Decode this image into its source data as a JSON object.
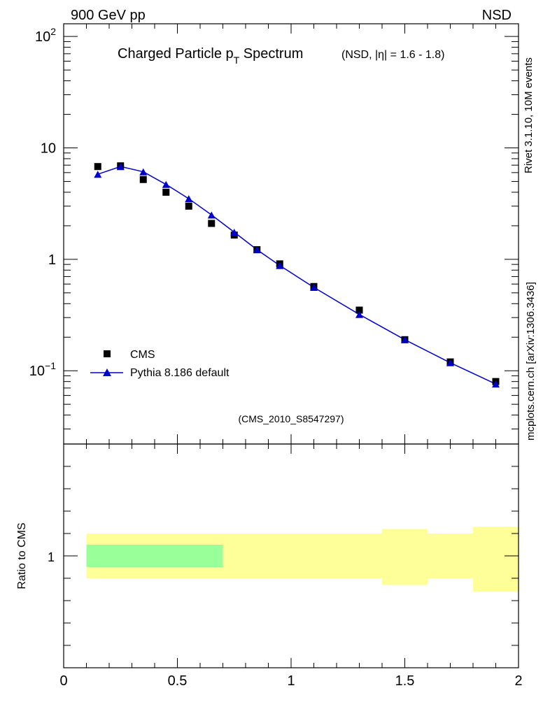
{
  "header": {
    "left": "900 GeV pp",
    "right": "NSD"
  },
  "side_labels": {
    "rivet": "Rivet 3.1.10,  10M events",
    "mcplots": "mcplots.cern.ch [arXiv:1306.3436]"
  },
  "chart_data": {
    "type": "scatter",
    "title_main": "Charged Particle p",
    "title_sub": "T",
    "title_main2": " Spectrum",
    "title_note": "(NSD, |η| = 1.6 - 1.8)",
    "watermark": "(CMS_2010_S8547297)",
    "xlabel": "",
    "ylabel": "",
    "xlim": [
      0,
      2
    ],
    "ylim": [
      0.022,
      130
    ],
    "yscale": "log",
    "y_ticks": [
      {
        "value": 0.1,
        "base": "10",
        "exp": "−1"
      },
      {
        "value": 1,
        "base": "1",
        "exp": ""
      },
      {
        "value": 10,
        "base": "10",
        "exp": ""
      },
      {
        "value": 100,
        "base": "10",
        "exp": "2"
      }
    ],
    "x_ticks": [
      {
        "value": 0,
        "label": "0"
      },
      {
        "value": 0.5,
        "label": "0.5"
      },
      {
        "value": 1,
        "label": "1"
      },
      {
        "value": 1.5,
        "label": "1.5"
      },
      {
        "value": 2,
        "label": "2"
      }
    ],
    "legend_position": "lower-left",
    "series": [
      {
        "name": "CMS",
        "marker": "square",
        "color": "#000000",
        "x": [
          0.15,
          0.25,
          0.35,
          0.45,
          0.55,
          0.65,
          0.75,
          0.85,
          0.95,
          1.1,
          1.3,
          1.5,
          1.7,
          1.9
        ],
        "y": [
          6.8,
          6.9,
          5.2,
          4.0,
          3.0,
          2.1,
          1.65,
          1.22,
          0.91,
          0.57,
          0.35,
          0.19,
          0.12,
          0.08
        ]
      },
      {
        "name": "Pythia 8.186 default",
        "marker": "triangle",
        "color": "#0000cc",
        "x": [
          0.15,
          0.25,
          0.35,
          0.45,
          0.55,
          0.65,
          0.75,
          0.85,
          0.95,
          1.1,
          1.3,
          1.5,
          1.7,
          1.9
        ],
        "y": [
          5.8,
          6.8,
          6.1,
          4.7,
          3.5,
          2.5,
          1.75,
          1.22,
          0.88,
          0.56,
          0.32,
          0.19,
          0.118,
          0.076
        ]
      }
    ],
    "ratio_panel": {
      "ylabel": "Ratio to CMS",
      "y_tick_label": "1",
      "ylim": [
        0.5,
        1.5
      ],
      "bands": [
        {
          "x0": 0.1,
          "x1": 0.3,
          "data_lo": 0.9,
          "data_hi": 1.1,
          "mc_lo": 0.95,
          "mc_hi": 1.05,
          "mc_color": "#99ff99"
        },
        {
          "x0": 0.3,
          "x1": 0.6,
          "data_lo": 0.9,
          "data_hi": 1.1,
          "mc_lo": 0.95,
          "mc_hi": 1.05,
          "mc_color": "#99ff99"
        },
        {
          "x0": 0.6,
          "x1": 0.7,
          "data_lo": 0.9,
          "data_hi": 1.1,
          "mc_lo": 0.95,
          "mc_hi": 1.05,
          "mc_color": "#99ff99"
        },
        {
          "x0": 0.7,
          "x1": 1.0,
          "data_lo": 0.9,
          "data_hi": 1.1,
          "mc_lo": null,
          "mc_hi": null,
          "mc_color": "#99ff99"
        },
        {
          "x0": 1.0,
          "x1": 1.2,
          "data_lo": 0.9,
          "data_hi": 1.1,
          "mc_lo": null,
          "mc_hi": null,
          "mc_color": "#99ff99"
        },
        {
          "x0": 1.2,
          "x1": 1.4,
          "data_lo": 0.9,
          "data_hi": 1.1,
          "mc_lo": null,
          "mc_hi": null,
          "mc_color": "#99ff99"
        },
        {
          "x0": 1.4,
          "x1": 1.6,
          "data_lo": 0.87,
          "data_hi": 1.12,
          "mc_lo": null,
          "mc_hi": null,
          "mc_color": "#99ff99"
        },
        {
          "x0": 1.6,
          "x1": 1.8,
          "data_lo": 0.9,
          "data_hi": 1.1,
          "mc_lo": null,
          "mc_hi": null,
          "mc_color": "#99ff99"
        },
        {
          "x0": 1.8,
          "x1": 2.0,
          "data_lo": 0.84,
          "data_hi": 1.13,
          "mc_lo": null,
          "mc_hi": null,
          "mc_color": "#99ff99"
        }
      ],
      "data_band_color": "#ffff99"
    }
  }
}
